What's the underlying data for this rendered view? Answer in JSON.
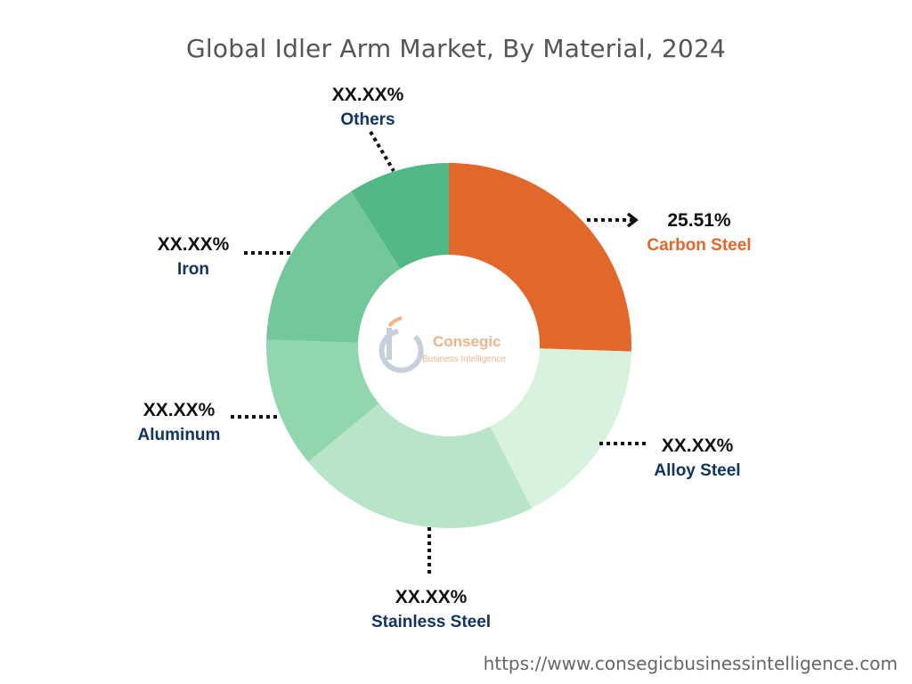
{
  "title": "Global Idler Arm Market, By Material, 2024",
  "source_url": "https://www.consegicbusinessintelligence.com",
  "logo": {
    "name": "Consegic",
    "tagline": "Business Intelligence"
  },
  "colors": {
    "highlight": "#e2672a",
    "category_label": "#0f3560",
    "leader": "#111111"
  },
  "chart_data": {
    "type": "pie",
    "donut": true,
    "slices": [
      {
        "label": "Carbon Steel",
        "display": "25.51%",
        "value": 25.51,
        "color": "#e2672a",
        "label_color": "#e2672a"
      },
      {
        "label": "Alloy Steel",
        "display": "XX.XX%",
        "value": 17.0,
        "color": "#d9f2de",
        "label_color": "#0f3560"
      },
      {
        "label": "Stainless Steel",
        "display": "XX.XX%",
        "value": 21.5,
        "color": "#b8e5c8",
        "label_color": "#0f3560"
      },
      {
        "label": "Aluminum",
        "display": "XX.XX%",
        "value": 11.5,
        "color": "#92d6ad",
        "label_color": "#0f3560"
      },
      {
        "label": "Iron",
        "display": "XX.XX%",
        "value": 15.5,
        "color": "#72c79b",
        "label_color": "#0f3560"
      },
      {
        "label": "Others",
        "display": "XX.XX%",
        "value": 8.99,
        "color": "#52b886",
        "label_color": "#0f3560"
      }
    ]
  }
}
